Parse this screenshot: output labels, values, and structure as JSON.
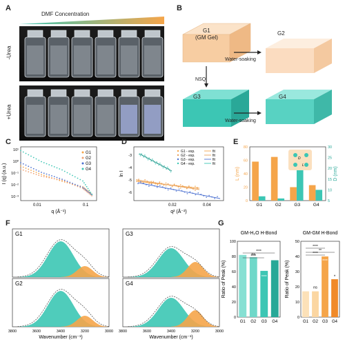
{
  "panels": {
    "A": {
      "letter": "A",
      "gradient_label": "DMF Concentration",
      "row_top": "-Urea",
      "row_bottom": "+Urea"
    },
    "B": {
      "letter": "B",
      "g1_label": "G1",
      "g1_sub": "(GM Gel)",
      "g2_label": "G2",
      "g3_label": "G3",
      "g4_label": "G4",
      "arrow_top": "Water-soaking",
      "arrow_bottom": "Water-soaking",
      "arrow_down": "NSQ"
    },
    "C": {
      "letter": "C"
    },
    "D": {
      "letter": "D"
    },
    "E": {
      "letter": "E"
    },
    "F": {
      "letter": "F",
      "labels": [
        "G1",
        "G2",
        "G3",
        "G4"
      ],
      "xlabel": "Wavenumber (cm⁻¹)",
      "ticks": [
        "3800",
        "3600",
        "3400",
        "3200",
        "3000"
      ]
    },
    "G": {
      "letter": "G"
    }
  },
  "colors": {
    "orange": "#f5a54a",
    "teal": "#3cc6b4",
    "teal_dark": "#2aa898",
    "peach": "#f9d9b8",
    "blue": "#4a6fd0"
  },
  "chart_data": [
    {
      "id": "C",
      "type": "scatter",
      "xlabel": "q (Å⁻¹)",
      "ylabel": "I (q) (a.u.)",
      "x_scale": "log",
      "y_scale": "log",
      "xticks": [
        "0.01",
        "0.1"
      ],
      "yticks": [
        "10¹",
        "10⁰",
        "10⁻¹",
        "10⁻²",
        "10⁻³"
      ],
      "legend": [
        "G1",
        "G2",
        "G3",
        "G4"
      ],
      "legend_position": "top-right"
    },
    {
      "id": "D",
      "type": "scatter",
      "xlabel": "q² (Å⁻²)",
      "ylabel": "ln I",
      "xticks": [
        "0.02",
        "0.04"
      ],
      "yticks": [
        "-3",
        "-4",
        "-5",
        "-6"
      ],
      "legend": [
        "G1 - exp.",
        "G2 - exp.",
        "G3 - exp.",
        "G4 - exp."
      ],
      "legend_fit": [
        "fit",
        "fit",
        "fit",
        "fit"
      ],
      "legend_position": "top-right"
    },
    {
      "id": "E",
      "type": "bar",
      "categories": [
        "G1",
        "G2",
        "G3",
        "G4"
      ],
      "series": [
        {
          "name": "L",
          "values": [
            58,
            65,
            20,
            23
          ]
        },
        {
          "name": "D",
          "values": [
            7,
            6,
            22,
            10
          ]
        }
      ],
      "ylabel_left": "L (nm)",
      "ylabel_right": "D (nm)",
      "ylim_left": [
        0,
        80
      ],
      "ylim_right": [
        5,
        30
      ],
      "yticks_left": [
        "0",
        "20",
        "40",
        "60",
        "80"
      ],
      "yticks_right": [
        "5",
        "10",
        "15",
        "20",
        "25",
        "30"
      ],
      "inset_labels": [
        "D",
        "L"
      ]
    },
    {
      "id": "G1",
      "type": "bar",
      "title": "GM-H₂O H-Bond",
      "categories": [
        "G1",
        "G2",
        "G3",
        "G4"
      ],
      "values": [
        82,
        79,
        61,
        75
      ],
      "ylabel": "Ratio of Peak (%)",
      "ylim": [
        0,
        100
      ],
      "yticks": [
        "0",
        "20",
        "40",
        "60",
        "80",
        "100"
      ],
      "sig": [
        "ns",
        "****",
        "****",
        "****"
      ]
    },
    {
      "id": "G2",
      "type": "bar",
      "title": "GM-GM H-Bond",
      "categories": [
        "G1",
        "G2",
        "G3",
        "G4"
      ],
      "values": [
        17,
        17,
        40,
        25
      ],
      "ylabel": "Ratio of Peak (%)",
      "ylim": [
        0,
        50
      ],
      "yticks": [
        "0",
        "10",
        "20",
        "30",
        "40",
        "50"
      ],
      "sig": [
        "ns",
        "****",
        "**",
        "****",
        "****",
        "*"
      ]
    }
  ]
}
